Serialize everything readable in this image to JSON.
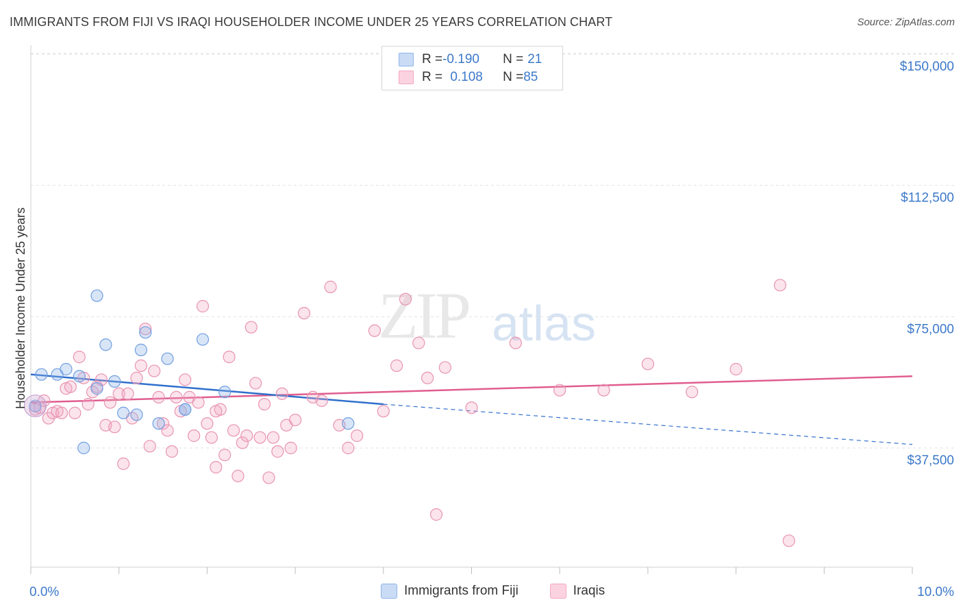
{
  "title": "IMMIGRANTS FROM FIJI VS IRAQI HOUSEHOLDER INCOME UNDER 25 YEARS CORRELATION CHART",
  "source": "Source: ZipAtlas.com",
  "watermark": {
    "zip": "ZIP",
    "atlas": "atlas"
  },
  "colors": {
    "blue": "#8fb4e8",
    "blue_line": "#2f6fcc",
    "pink": "#f2a7c0",
    "pink_line": "#e05d8e",
    "axis_text": "#3b78c9"
  },
  "legend": {
    "rows": [
      {
        "r_label": "R = ",
        "r_value": "-0.190",
        "n_label": "N = ",
        "n_value": "21"
      },
      {
        "r_label": "R = ",
        "r_value": "0.108",
        "n_label": "N = ",
        "n_value": "85"
      }
    ]
  },
  "bottom_legend": [
    "Immigrants from Fiji",
    "Iraqis"
  ],
  "chart_data": {
    "type": "scatter",
    "title": "IMMIGRANTS FROM FIJI VS IRAQI HOUSEHOLDER INCOME UNDER 25 YEARS CORRELATION CHART",
    "xlabel": "",
    "ylabel": "Householder Income Under 25 years",
    "xlim": [
      0,
      10
    ],
    "ylim": [
      0,
      155000
    ],
    "x_tick_labels": [
      "0.0%",
      "10.0%"
    ],
    "y_ticks": [
      37500,
      75000,
      112500,
      150000
    ],
    "y_tick_labels": [
      "$37,500",
      "$75,000",
      "$112,500",
      "$150,000"
    ],
    "grid": "horizontal dashed",
    "legend_position": "top-center",
    "series": [
      {
        "name": "Immigrants from Fiji",
        "color": "#8fb4e8",
        "points": [
          [
            0.05,
            49500
          ],
          [
            0.12,
            58500
          ],
          [
            0.3,
            58500
          ],
          [
            0.4,
            60000
          ],
          [
            0.55,
            58000
          ],
          [
            0.6,
            37500
          ],
          [
            0.75,
            54500
          ],
          [
            0.75,
            81000
          ],
          [
            0.85,
            67000
          ],
          [
            0.95,
            56500
          ],
          [
            1.05,
            47500
          ],
          [
            1.2,
            47000
          ],
          [
            1.25,
            65500
          ],
          [
            1.3,
            70500
          ],
          [
            1.45,
            44500
          ],
          [
            1.55,
            63000
          ],
          [
            1.75,
            48500
          ],
          [
            1.75,
            48500
          ],
          [
            1.95,
            68500
          ],
          [
            2.2,
            53500
          ],
          [
            3.6,
            44500
          ]
        ],
        "trend": {
          "x0": 0.0,
          "y0": 58500,
          "x1": 4.0,
          "y1": 50000,
          "dash_to_x": 10.0,
          "dash_to_y": 38500
        }
      },
      {
        "name": "Iraqis",
        "color": "#f2a7c0",
        "points": [
          [
            0.05,
            48500
          ],
          [
            0.1,
            49000
          ],
          [
            0.15,
            51000
          ],
          [
            0.2,
            46000
          ],
          [
            0.25,
            47500
          ],
          [
            0.3,
            48000
          ],
          [
            0.35,
            47500
          ],
          [
            0.4,
            54500
          ],
          [
            0.45,
            55000
          ],
          [
            0.5,
            47500
          ],
          [
            0.55,
            63500
          ],
          [
            0.6,
            57500
          ],
          [
            0.65,
            50000
          ],
          [
            0.7,
            53500
          ],
          [
            0.75,
            55000
          ],
          [
            0.8,
            57000
          ],
          [
            0.85,
            44000
          ],
          [
            0.9,
            50500
          ],
          [
            0.95,
            43500
          ],
          [
            1.0,
            53000
          ],
          [
            1.05,
            33000
          ],
          [
            1.1,
            53000
          ],
          [
            1.15,
            46000
          ],
          [
            1.2,
            57500
          ],
          [
            1.25,
            61000
          ],
          [
            1.3,
            71500
          ],
          [
            1.35,
            38000
          ],
          [
            1.4,
            59500
          ],
          [
            1.45,
            52000
          ],
          [
            1.5,
            44500
          ],
          [
            1.55,
            42500
          ],
          [
            1.6,
            36500
          ],
          [
            1.65,
            52000
          ],
          [
            1.7,
            48000
          ],
          [
            1.75,
            57000
          ],
          [
            1.8,
            52000
          ],
          [
            1.85,
            41000
          ],
          [
            1.9,
            50500
          ],
          [
            1.95,
            78000
          ],
          [
            2.0,
            44500
          ],
          [
            2.05,
            40500
          ],
          [
            2.1,
            32000
          ],
          [
            2.15,
            48500
          ],
          [
            2.2,
            35500
          ],
          [
            2.25,
            63500
          ],
          [
            2.3,
            42500
          ],
          [
            2.35,
            29500
          ],
          [
            2.4,
            39000
          ],
          [
            2.45,
            41000
          ],
          [
            2.5,
            72000
          ],
          [
            2.55,
            56000
          ],
          [
            2.6,
            40500
          ],
          [
            2.65,
            50000
          ],
          [
            2.7,
            29000
          ],
          [
            2.75,
            40500
          ],
          [
            2.8,
            36500
          ],
          [
            2.85,
            53000
          ],
          [
            2.9,
            44000
          ],
          [
            2.95,
            37500
          ],
          [
            3.0,
            45500
          ],
          [
            3.1,
            76000
          ],
          [
            3.2,
            52000
          ],
          [
            3.3,
            51000
          ],
          [
            3.4,
            83500
          ],
          [
            3.5,
            44000
          ],
          [
            3.6,
            37500
          ],
          [
            3.7,
            41000
          ],
          [
            3.9,
            71000
          ],
          [
            4.0,
            48000
          ],
          [
            4.15,
            61000
          ],
          [
            4.25,
            80000
          ],
          [
            4.4,
            67500
          ],
          [
            4.5,
            57500
          ],
          [
            4.6,
            18500
          ],
          [
            4.7,
            60500
          ],
          [
            5.0,
            49000
          ],
          [
            5.5,
            67500
          ],
          [
            6.0,
            54000
          ],
          [
            6.5,
            54000
          ],
          [
            7.0,
            61500
          ],
          [
            7.5,
            53500
          ],
          [
            8.0,
            60000
          ],
          [
            8.5,
            84000
          ],
          [
            8.6,
            11000
          ],
          [
            2.1,
            48000
          ]
        ],
        "trend": {
          "x0": 0.0,
          "y0": 50500,
          "x1": 10.0,
          "y1": 58000
        }
      }
    ]
  }
}
